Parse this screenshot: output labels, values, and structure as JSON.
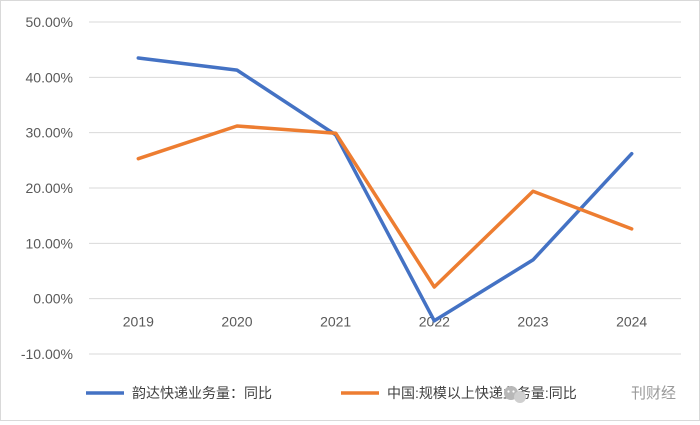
{
  "chart_data": {
    "type": "line",
    "x": [
      "2019",
      "2020",
      "2021",
      "2022",
      "2023",
      "2024"
    ],
    "ylim": [
      -10,
      50
    ],
    "yticks": [
      50,
      40,
      30,
      20,
      10,
      0,
      -10
    ],
    "ytick_labels": [
      "50.00%",
      "40.00%",
      "30.00%",
      "20.00%",
      "10.00%",
      "0.00%",
      "-10.00%"
    ],
    "grid": true,
    "legend_position": "bottom",
    "series": [
      {
        "name": "韵达快递业务量：同比",
        "color": "#4472C4",
        "values": [
          43.5,
          41.3,
          29.6,
          -4.0,
          7.0,
          26.2
        ]
      },
      {
        "name": "中国:规模以上快递业务量:同比",
        "color": "#ED7D31",
        "values": [
          25.3,
          31.2,
          29.9,
          2.1,
          19.4,
          12.6
        ]
      }
    ]
  },
  "watermark": {
    "text": "刊财经",
    "icon": "wechat-icon"
  }
}
